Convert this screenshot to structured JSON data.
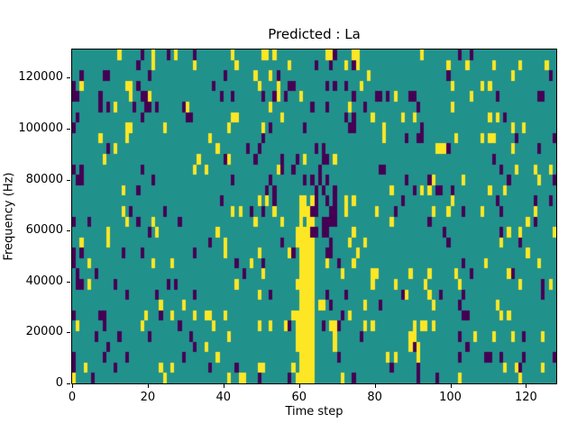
{
  "chart_data": {
    "type": "heatmap",
    "title": "Predicted : La",
    "xlabel": "Time step",
    "ylabel": "Frequency (Hz)",
    "xlim": [
      0,
      128
    ],
    "ylim": [
      0,
      131072
    ],
    "x_ticks": [
      0,
      20,
      40,
      60,
      80,
      100,
      120
    ],
    "x_tick_labels": [
      "0",
      "20",
      "40",
      "60",
      "80",
      "100",
      "120"
    ],
    "y_ticks": [
      0,
      20000,
      40000,
      60000,
      80000,
      100000,
      120000
    ],
    "y_tick_labels": [
      "0",
      "20000",
      "40000",
      "60000",
      "80000",
      "100000",
      "120000"
    ],
    "grid": {
      "cols": 128,
      "rows": 32
    },
    "legend": "none",
    "colors": {
      "background": "#21918c",
      "high": "#fde725",
      "low": "#440154",
      "axis": "#000000"
    },
    "noise": {
      "seed": 7,
      "yellow_p": 0.055,
      "purple_p": 0.05,
      "description": "sparse random scatter of high/low cells over mid-value background"
    },
    "features": [
      {
        "name": "yellow-vertical-band",
        "color": "high",
        "col_start": 60,
        "col_end": 63,
        "row_start": 0,
        "row_end": 17,
        "p": 0.95,
        "description": "near-solid yellow band at time steps ~60-64, 0 to ~73000 Hz"
      },
      {
        "name": "yellow-band-left-edge",
        "color": "high",
        "col_start": 59,
        "col_end": 59,
        "row_start": 0,
        "row_end": 15,
        "p": 0.35
      },
      {
        "name": "purple-cluster-right-of-band",
        "color": "low",
        "col_start": 63,
        "col_end": 69,
        "row_start": 13,
        "row_end": 19,
        "p": 0.45,
        "description": "dense low-value cluster at time ~64-70, 53000-82000 Hz"
      },
      {
        "name": "left-edge-purple",
        "color": "low",
        "col_start": 0,
        "col_end": 2,
        "row_start": 0,
        "row_end": 31,
        "p": 0.15
      }
    ]
  }
}
